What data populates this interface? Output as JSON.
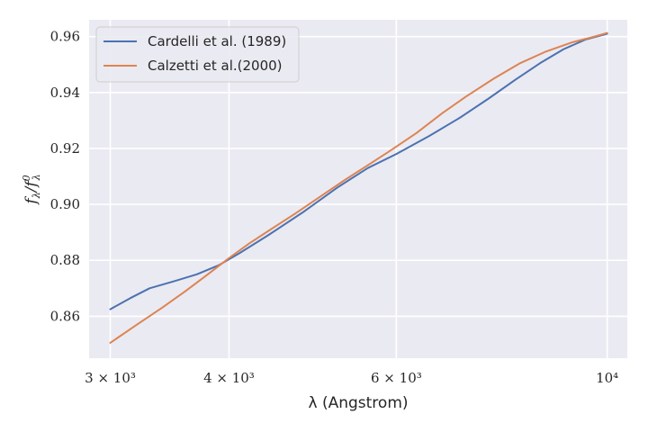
{
  "chart_data": {
    "type": "line",
    "xscale": "log",
    "xlabel": "λ (Angstrom)",
    "ylabel": "fλ/f0λ",
    "xlim": [
      2850,
      10500
    ],
    "ylim": [
      0.845,
      0.966
    ],
    "grid": true,
    "legend_position": "top-left",
    "x_ticks": [
      {
        "value": 3000,
        "label": "3 × 10³"
      },
      {
        "value": 4000,
        "label": "4 × 10³"
      },
      {
        "value": 6000,
        "label": "6 × 10³"
      },
      {
        "value": 10000,
        "label": "10⁴"
      }
    ],
    "y_ticks": [
      {
        "value": 0.86,
        "label": "0.86"
      },
      {
        "value": 0.88,
        "label": "0.88"
      },
      {
        "value": 0.9,
        "label": "0.90"
      },
      {
        "value": 0.92,
        "label": "0.92"
      },
      {
        "value": 0.94,
        "label": "0.94"
      },
      {
        "value": 0.96,
        "label": "0.96"
      }
    ],
    "series": [
      {
        "name": "Cardelli et al. (1989)",
        "color": "#4c72b0",
        "x": [
          3000,
          3150,
          3300,
          3500,
          3700,
          3900,
          4100,
          4400,
          4800,
          5200,
          5600,
          6000,
          6500,
          7000,
          7500,
          8000,
          8500,
          9000,
          9500,
          10000
        ],
        "y": [
          0.8625,
          0.8665,
          0.87,
          0.8725,
          0.875,
          0.8782,
          0.8825,
          0.889,
          0.8975,
          0.906,
          0.913,
          0.918,
          0.9245,
          0.931,
          0.9378,
          0.9445,
          0.9505,
          0.9555,
          0.959,
          0.961
        ]
      },
      {
        "name": "Calzetti et al.(2000)",
        "color": "#dd8452",
        "x": [
          3000,
          3200,
          3400,
          3600,
          3800,
          4000,
          4200,
          4400,
          4700,
          5000,
          5300,
          5600,
          5900,
          6300,
          6700,
          7100,
          7600,
          8100,
          8600,
          9200,
          9700,
          10000
        ],
        "y": [
          0.8505,
          0.857,
          0.863,
          0.869,
          0.875,
          0.8808,
          0.886,
          0.8905,
          0.8968,
          0.903,
          0.9088,
          0.914,
          0.919,
          0.9255,
          0.9325,
          0.9385,
          0.945,
          0.9505,
          0.9545,
          0.958,
          0.96,
          0.9613
        ]
      }
    ]
  }
}
